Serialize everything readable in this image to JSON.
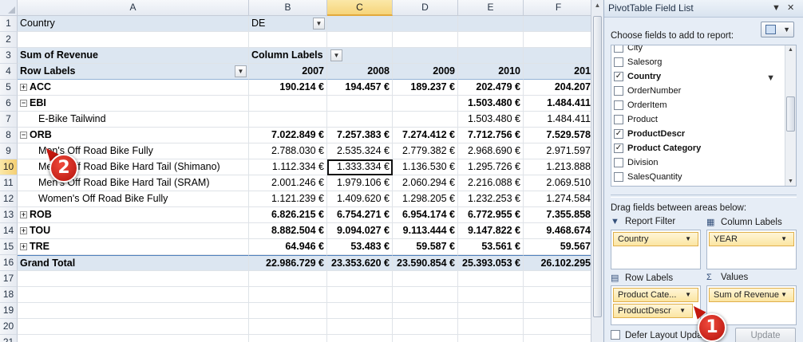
{
  "sheet": {
    "columns": [
      "A",
      "B",
      "C",
      "D",
      "E",
      "F"
    ],
    "rows": [
      "1",
      "2",
      "3",
      "4",
      "5",
      "6",
      "7",
      "8",
      "9",
      "10",
      "11",
      "12",
      "13",
      "14",
      "15",
      "16",
      "17",
      "18",
      "19",
      "20",
      "21"
    ],
    "filter": {
      "label": "Country",
      "value": "DE"
    },
    "pivot": {
      "values_label": "Sum of Revenue",
      "column_labels": "Column Labels",
      "row_labels": "Row Labels",
      "years": [
        "2007",
        "2008",
        "2009",
        "2010",
        "201"
      ],
      "data_rows": [
        {
          "label": "ACC",
          "type": "cat",
          "expander": "+",
          "values": [
            "190.214 €",
            "194.457 €",
            "189.237 €",
            "202.479 €",
            "204.207"
          ]
        },
        {
          "label": "EBI",
          "type": "cat",
          "expander": "−",
          "values": [
            "",
            "",
            "",
            "1.503.480 €",
            "1.484.411"
          ]
        },
        {
          "label": "E-Bike Tailwind",
          "type": "item",
          "values": [
            "",
            "",
            "",
            "1.503.480 €",
            "1.484.411"
          ]
        },
        {
          "label": "ORB",
          "type": "cat",
          "expander": "−",
          "values": [
            "7.022.849 €",
            "7.257.383 €",
            "7.274.412 €",
            "7.712.756 €",
            "7.529.578"
          ]
        },
        {
          "label": "Men's Off Road Bike Fully",
          "type": "item",
          "values": [
            "2.788.030 €",
            "2.535.324 €",
            "2.779.382 €",
            "2.968.690 €",
            "2.971.597"
          ]
        },
        {
          "label": "Men's Off Road Bike Hard Tail (Shimano)",
          "type": "item",
          "values": [
            "1.112.334 €",
            "1.333.334 €",
            "1.136.530 €",
            "1.295.726 €",
            "1.213.888"
          ]
        },
        {
          "label": "Men's Off Road Bike Hard Tail (SRAM)",
          "type": "item",
          "values": [
            "2.001.246 €",
            "1.979.106 €",
            "2.060.294 €",
            "2.216.088 €",
            "2.069.510"
          ]
        },
        {
          "label": "Women's Off Road Bike Fully",
          "type": "item",
          "values": [
            "1.121.239 €",
            "1.409.620 €",
            "1.298.205 €",
            "1.232.253 €",
            "1.274.584"
          ]
        },
        {
          "label": "ROB",
          "type": "cat",
          "expander": "+",
          "values": [
            "6.826.215 €",
            "6.754.271 €",
            "6.954.174 €",
            "6.772.955 €",
            "7.355.858"
          ]
        },
        {
          "label": "TOU",
          "type": "cat",
          "expander": "+",
          "values": [
            "8.882.504 €",
            "9.094.027 €",
            "9.113.444 €",
            "9.147.822 €",
            "9.468.674"
          ]
        },
        {
          "label": "TRE",
          "type": "cat",
          "expander": "+",
          "values": [
            "64.946 €",
            "53.483 €",
            "59.587 €",
            "53.561 €",
            "59.567"
          ]
        },
        {
          "label": "Grand Total",
          "type": "grand",
          "values": [
            "22.986.729 €",
            "23.353.620 €",
            "23.590.854 €",
            "25.393.053 €",
            "26.102.295"
          ]
        }
      ]
    }
  },
  "badges": {
    "one": "1",
    "two": "2"
  },
  "pane": {
    "title": "PivotTable Field List",
    "choose_label": "Choose fields to add to report:",
    "fields": [
      {
        "name": "City",
        "checked": false
      },
      {
        "name": "Salesorg",
        "checked": false
      },
      {
        "name": "Country",
        "checked": true
      },
      {
        "name": "OrderNumber",
        "checked": false
      },
      {
        "name": "OrderItem",
        "checked": false
      },
      {
        "name": "Product",
        "checked": false
      },
      {
        "name": "ProductDescr",
        "checked": true
      },
      {
        "name": "Product Category",
        "checked": true
      },
      {
        "name": "Division",
        "checked": false
      },
      {
        "name": "SalesQuantity",
        "checked": false
      }
    ],
    "drag_label": "Drag fields between areas below:",
    "areas": {
      "report_filter": {
        "label": "Report Filter",
        "chips": [
          "Country"
        ]
      },
      "column_labels": {
        "label": "Column Labels",
        "chips": [
          "YEAR"
        ]
      },
      "row_labels": {
        "label": "Row Labels",
        "chips": [
          "Product Cate...",
          "ProductDescr"
        ]
      },
      "values": {
        "label": "Values",
        "chips": [
          "Sum of Revenue"
        ]
      }
    },
    "defer_label": "Defer Layout Updat",
    "update_label": "Update"
  }
}
